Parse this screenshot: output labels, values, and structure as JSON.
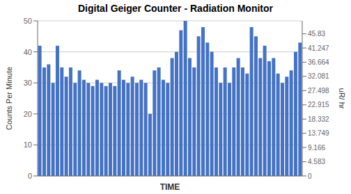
{
  "chart_data": {
    "type": "bar",
    "title": "Digital Geiger Counter - Radiation Monitor",
    "xlabel": "TIME",
    "ylabel": "Counts Per Minute",
    "y2label": "uR/ hr",
    "values": [
      42,
      35,
      36,
      30,
      42,
      35,
      32,
      35,
      30,
      34,
      31,
      30,
      29,
      31,
      30,
      29,
      30,
      29,
      34,
      31,
      30,
      32,
      30,
      31,
      30,
      20,
      34,
      35,
      31,
      30,
      38,
      40,
      47,
      50,
      38,
      35,
      45,
      48,
      43,
      40,
      35,
      30,
      35,
      30,
      35,
      38,
      35,
      33,
      48,
      45,
      38,
      42,
      37,
      38,
      33,
      30,
      32,
      34,
      40,
      43
    ],
    "color": "#4472C4",
    "ylim": [
      0,
      50
    ],
    "yticks": [
      0,
      10,
      20,
      30,
      40,
      50
    ],
    "y2lim": [
      0,
      50
    ],
    "y2ticks": [
      0,
      4.583,
      9.166,
      13.749,
      18.332,
      22.915,
      27.498,
      32.081,
      36.664,
      41.247,
      45.83
    ],
    "grid": true,
    "tick_labels": "y"
  }
}
